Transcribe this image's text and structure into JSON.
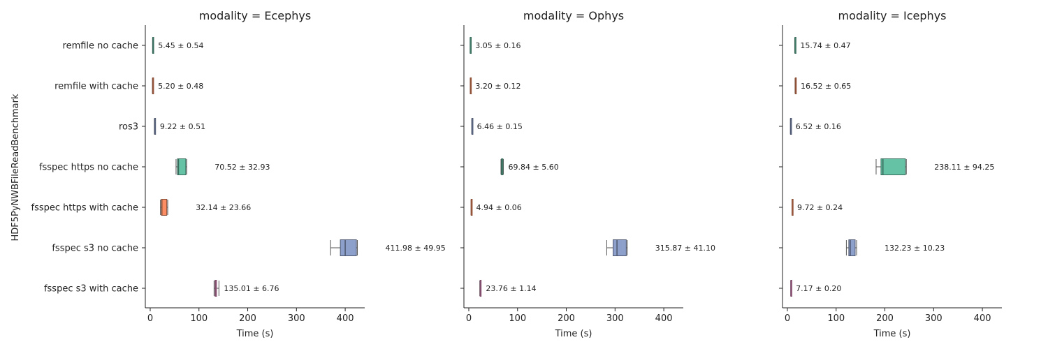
{
  "chart_data": {
    "type": "box",
    "ylabel": "HDF5PyNWBFileReadBenchmark",
    "xlabel": "Time (s)",
    "categories": [
      "remfile no cache",
      "remfile with cache",
      "ros3",
      "fsspec https no cache",
      "fsspec https with cache",
      "fsspec s3 no cache",
      "fsspec s3 with cache"
    ],
    "colors": [
      "#66c2a5",
      "#fc8d62",
      "#8da0cb",
      "#66c2a5",
      "#fc8d62",
      "#8da0cb",
      "#e78ac3"
    ],
    "xlim": [
      -10,
      440
    ],
    "xticks": [
      0,
      100,
      200,
      300,
      400
    ],
    "xtick_labels": [
      "0",
      "100",
      "200",
      "300",
      "400"
    ],
    "grid": false,
    "panels": [
      {
        "title": "modality = Ecephys",
        "boxes": [
          {
            "min": 4.8,
            "q1": 5.1,
            "median": 5.4,
            "q3": 5.8,
            "max": 6.2,
            "label": "5.45 ± 0.54"
          },
          {
            "min": 4.6,
            "q1": 4.9,
            "median": 5.2,
            "q3": 5.5,
            "max": 5.9,
            "label": "5.20 ± 0.48"
          },
          {
            "min": 8.5,
            "q1": 8.9,
            "median": 9.2,
            "q3": 9.5,
            "max": 9.9,
            "label": "9.22 ± 0.51"
          },
          {
            "min": 53,
            "q1": 56,
            "median": 58,
            "q3": 73,
            "max": 75,
            "label": "70.52 ± 32.93"
          },
          {
            "min": 21,
            "q1": 23,
            "median": 24,
            "q3": 34,
            "max": 36,
            "label": "32.14 ± 23.66"
          },
          {
            "min": 370,
            "q1": 390,
            "median": 400,
            "q3": 423,
            "max": 425,
            "label": "411.98 ± 49.95"
          },
          {
            "min": 131,
            "q1": 133,
            "median": 134,
            "q3": 136,
            "max": 141,
            "label": "135.01 ± 6.76"
          }
        ]
      },
      {
        "title": "modality = Ophys",
        "boxes": [
          {
            "min": 2.8,
            "q1": 2.9,
            "median": 3.0,
            "q3": 3.2,
            "max": 3.3,
            "label": "3.05 ± 0.16"
          },
          {
            "min": 3.0,
            "q1": 3.1,
            "median": 3.2,
            "q3": 3.3,
            "max": 3.4,
            "label": "3.20 ± 0.12"
          },
          {
            "min": 6.2,
            "q1": 6.4,
            "median": 6.5,
            "q3": 6.6,
            "max": 6.7,
            "label": "6.46 ± 0.15"
          },
          {
            "min": 66,
            "q1": 67,
            "median": 68,
            "q3": 70,
            "max": 71,
            "label": "69.84 ± 5.60"
          },
          {
            "min": 4.8,
            "q1": 4.9,
            "median": 4.95,
            "q3": 5.0,
            "max": 5.1,
            "label": "4.94 ± 0.06"
          },
          {
            "min": 283,
            "q1": 296,
            "median": 304,
            "q3": 323,
            "max": 325,
            "label": "315.87 ± 41.10"
          },
          {
            "min": 22.5,
            "q1": 23.2,
            "median": 23.7,
            "q3": 24.3,
            "max": 25.0,
            "label": "23.76 ± 1.14"
          }
        ]
      },
      {
        "title": "modality = Icephys",
        "boxes": [
          {
            "min": 15.0,
            "q1": 15.5,
            "median": 15.7,
            "q3": 16.0,
            "max": 16.4,
            "label": "15.74 ± 0.47"
          },
          {
            "min": 15.7,
            "q1": 16.2,
            "median": 16.5,
            "q3": 16.9,
            "max": 17.3,
            "label": "16.52 ± 0.65"
          },
          {
            "min": 6.3,
            "q1": 6.4,
            "median": 6.5,
            "q3": 6.6,
            "max": 6.8,
            "label": "6.52 ± 0.16"
          },
          {
            "min": 182,
            "q1": 192,
            "median": 196,
            "q3": 242,
            "max": 244,
            "label": "238.11 ± 94.25"
          },
          {
            "min": 9.4,
            "q1": 9.6,
            "median": 9.7,
            "q3": 9.8,
            "max": 10.0,
            "label": "9.72 ± 0.24"
          },
          {
            "min": 121,
            "q1": 126,
            "median": 129,
            "q3": 139,
            "max": 142,
            "label": "132.23 ± 10.23"
          },
          {
            "min": 6.9,
            "q1": 7.1,
            "median": 7.2,
            "q3": 7.3,
            "max": 7.4,
            "label": "7.17 ± 0.20"
          }
        ]
      }
    ]
  }
}
